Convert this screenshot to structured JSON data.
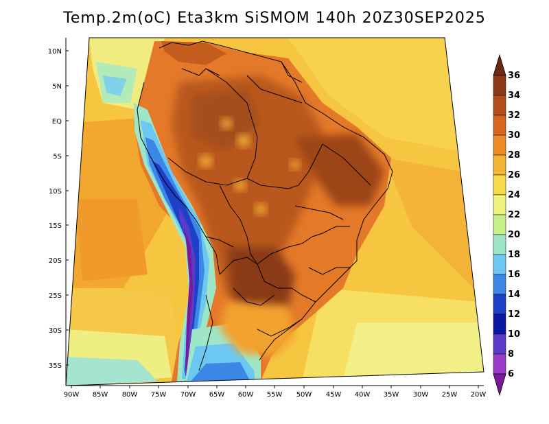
{
  "title": "Temp.2m(oC) Eta3km SiSMOM 140h 20Z30SEP2025",
  "lat_labels": [
    "10N",
    "5N",
    "EQ",
    "5S",
    "10S",
    "15S",
    "20S",
    "25S",
    "30S",
    "35S"
  ],
  "lon_labels": [
    "90W",
    "85W",
    "80W",
    "75W",
    "70W",
    "65W",
    "60W",
    "55W",
    "50W",
    "45W",
    "40W",
    "35W",
    "30W",
    "25W",
    "20W"
  ],
  "colorbar": {
    "labels": [
      "36",
      "34",
      "32",
      "30",
      "28",
      "26",
      "24",
      "22",
      "20",
      "18",
      "16",
      "14",
      "12",
      "10",
      "8",
      "6"
    ],
    "colors": [
      "#6b2a12",
      "#8c3b16",
      "#b34d19",
      "#d9661f",
      "#f08a26",
      "#f5b335",
      "#f7d94a",
      "#eef27a",
      "#c6f08a",
      "#9fe6c8",
      "#6cc8f2",
      "#3c86e6",
      "#1e3fc8",
      "#0a1aa0",
      "#5a3cc8",
      "#9a3cc8",
      "#7a1a9a"
    ]
  }
}
